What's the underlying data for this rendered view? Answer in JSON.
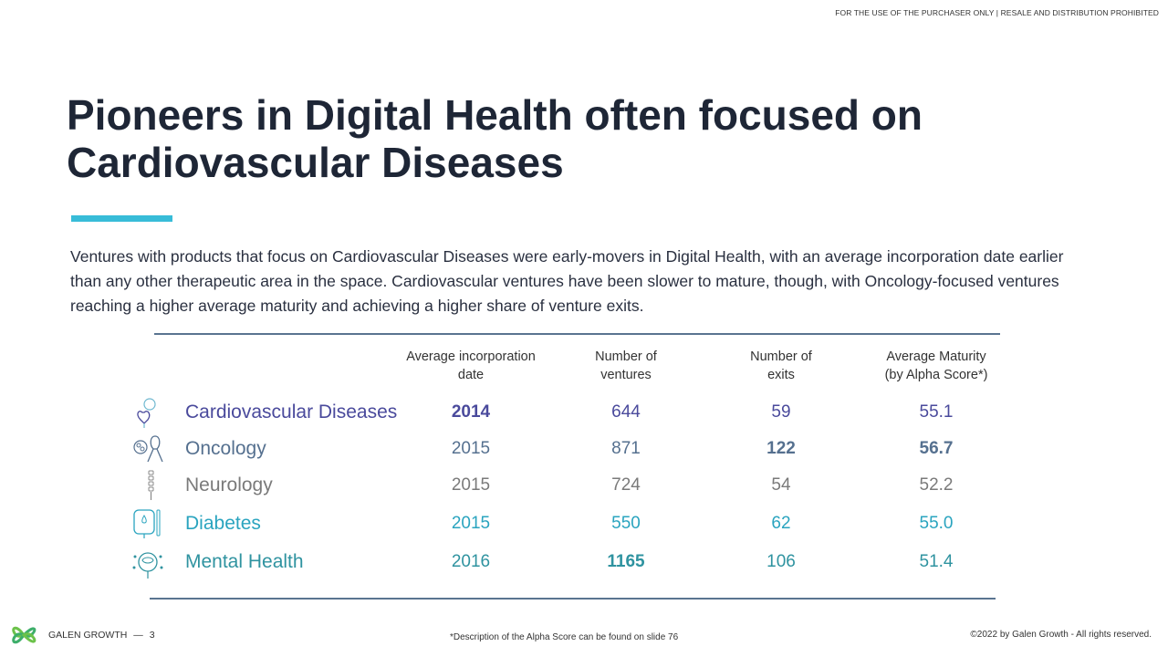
{
  "notice": "FOR THE USE OF THE PURCHASER ONLY | RESALE AND DISTRIBUTION PROHIBITED",
  "title_line1": "Pioneers in Digital Health often focused on",
  "title_line2": "Cardiovascular Diseases",
  "intro": "Ventures with products that focus on Cardiovascular Diseases were early-movers in Digital Health, with an average incorporation date earlier than any other therapeutic area in the space. Cardiovascular ventures have been slower to mature, though, with Oncology-focused ventures reaching a higher average maturity and achieving a higher share of venture exits.",
  "table": {
    "headers": {
      "incorporation": [
        "Average incorporation",
        "date"
      ],
      "ventures": [
        "Number of",
        "ventures"
      ],
      "exits": [
        "Number of",
        "exits"
      ],
      "maturity": [
        "Average Maturity",
        "(by Alpha Score*)"
      ]
    },
    "rows": [
      {
        "name": "Cardiovascular Diseases",
        "icon": "heart-icon",
        "color": "#4a4a9c",
        "incorporation": "2014",
        "ventures": "644",
        "exits": "59",
        "maturity": "55.1",
        "bold": [
          "incorporation"
        ]
      },
      {
        "name": "Oncology",
        "icon": "ribbon-icon",
        "color": "#55708f",
        "incorporation": "2015",
        "ventures": "871",
        "exits": "122",
        "maturity": "56.7",
        "bold": [
          "exits",
          "maturity"
        ]
      },
      {
        "name": "Neurology",
        "icon": "spine-icon",
        "color": "#7a7a7a",
        "incorporation": "2015",
        "ventures": "724",
        "exits": "54",
        "maturity": "52.2",
        "bold": []
      },
      {
        "name": "Diabetes",
        "icon": "glucose-meter-icon",
        "color": "#2aa4bf",
        "incorporation": "2015",
        "ventures": "550",
        "exits": "62",
        "maturity": "55.0",
        "bold": []
      },
      {
        "name": "Mental Health",
        "icon": "brain-head-icon",
        "color": "#2f93a0",
        "incorporation": "2016",
        "ventures": "1165",
        "exits": "106",
        "maturity": "51.4",
        "bold": [
          "ventures"
        ]
      }
    ]
  },
  "footer": {
    "brand": "GALEN GROWTH",
    "separator": "—",
    "page": "3",
    "note": "*Description of the Alpha Score can be found on slide 76",
    "copyright": "©2022 by Galen Growth  - All rights reserved."
  }
}
